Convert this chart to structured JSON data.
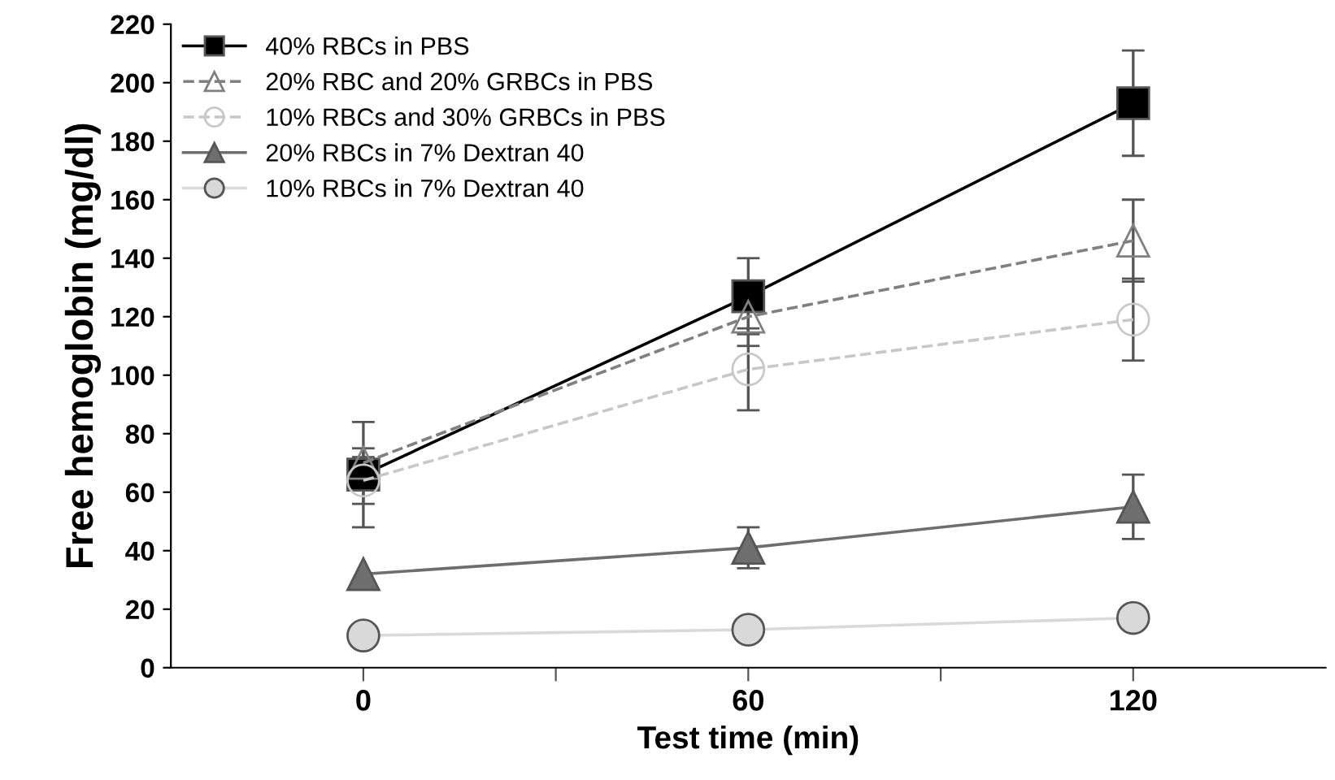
{
  "chart_data": {
    "type": "line",
    "xlabel": "Test time (min)",
    "ylabel": "Free hemoglobin (mg/dl)",
    "x": [
      0,
      60,
      120
    ],
    "xlim": [
      -30,
      150
    ],
    "xticks": [
      0,
      {
        "value": 30,
        "label": null
      },
      60,
      {
        "value": 90,
        "label": null
      },
      120
    ],
    "series": [
      {
        "name": "40% RBCs in PBS",
        "color": "#000000",
        "marker": "square",
        "line_style": "solid",
        "values": [
          66,
          127,
          193
        ],
        "errors": [
          18,
          13,
          18
        ]
      },
      {
        "name": "20% RBC and 20% GRBCs in PBS",
        "color": "#808080",
        "marker": "triangle",
        "line_style": "dashed",
        "values": [
          70,
          120,
          146
        ],
        "errors": [
          5,
          10,
          14
        ]
      },
      {
        "name": "10% RBCs and 30% GRBCs in PBS",
        "color": "#c8c8c8",
        "marker": "circle",
        "line_style": "dashed",
        "values": [
          64,
          102,
          119
        ],
        "errors": [
          8,
          14,
          14
        ]
      },
      {
        "name": "20% RBCs in 7% Dextran 40",
        "color": "#6e6e6e",
        "marker": "triangle",
        "line_style": "solid",
        "values": [
          32,
          41,
          55
        ],
        "errors": [
          null,
          7,
          11
        ]
      },
      {
        "name": "10% RBCs in 7% Dextran 40",
        "color": "#d9d9d9",
        "marker": "circle",
        "line_style": "solid",
        "values": [
          11,
          13,
          17
        ]
      }
    ],
    "ylim": [
      0,
      220
    ],
    "yticks": [
      0,
      20,
      40,
      60,
      80,
      100,
      120,
      140,
      160,
      180,
      200,
      220
    ],
    "grid": false,
    "legend": "top left"
  }
}
